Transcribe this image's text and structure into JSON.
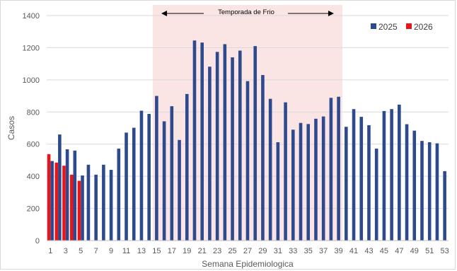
{
  "chart_data": {
    "type": "bar",
    "xlabel": "Semana Epidemiologica",
    "ylabel": "Casos",
    "ylim": [
      0,
      1400
    ],
    "yticks": [
      0,
      200,
      400,
      600,
      800,
      1000,
      1200,
      1400
    ],
    "x_tick_labels": [
      "1",
      "3",
      "5",
      "7",
      "9",
      "11",
      "13",
      "15",
      "17",
      "19",
      "21",
      "23",
      "25",
      "27",
      "29",
      "31",
      "33",
      "35",
      "37",
      "39",
      "41",
      "43",
      "45",
      "47",
      "49",
      "51",
      "53"
    ],
    "grid": "horizontal",
    "legend_position": "top-right",
    "series": [
      {
        "name": "2025",
        "color": "#2e4a8f",
        "x": [
          1,
          2,
          3,
          4,
          5,
          6,
          7,
          8,
          9,
          10,
          11,
          12,
          13,
          14,
          15,
          16,
          17,
          18,
          19,
          20,
          21,
          22,
          23,
          24,
          25,
          26,
          27,
          28,
          29,
          30,
          31,
          32,
          33,
          34,
          35,
          36,
          37,
          38,
          39,
          40,
          41,
          42,
          43,
          44,
          45,
          46,
          47,
          48,
          49,
          50,
          51,
          52,
          53
        ],
        "values": [
          495,
          660,
          568,
          560,
          405,
          472,
          410,
          472,
          440,
          572,
          672,
          702,
          808,
          788,
          900,
          742,
          836,
          626,
          912,
          1245,
          1232,
          1082,
          1174,
          1222,
          1140,
          1182,
          992,
          1210,
          1030,
          882,
          612,
          860,
          690,
          732,
          725,
          758,
          772,
          888,
          895,
          708,
          818,
          770,
          718,
          572,
          806,
          818,
          846,
          724,
          684,
          620,
          612,
          605,
          432
        ]
      },
      {
        "name": "2026",
        "color": "#e8161b",
        "x": [
          1,
          2,
          3,
          4,
          5
        ],
        "values": [
          538,
          485,
          466,
          410,
          372
        ]
      }
    ],
    "annotation": {
      "label": "Temporada de Frio",
      "range": [
        15,
        39
      ],
      "shade_color": "#fbe4e4"
    }
  }
}
